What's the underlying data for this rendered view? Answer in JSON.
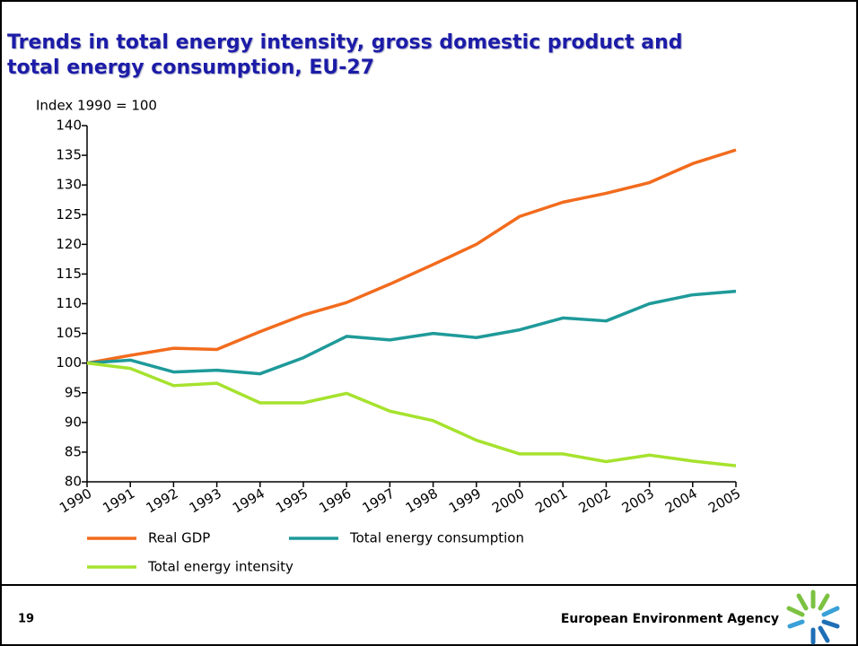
{
  "chart_data": {
    "type": "line",
    "title": "Trends in total energy intensity, gross domestic product and total energy consumption, EU-27",
    "y_label": "Index 1990 = 100",
    "categories": [
      "1990",
      "1991",
      "1992",
      "1993",
      "1994",
      "1995",
      "1996",
      "1997",
      "1998",
      "1999",
      "2000",
      "2001",
      "2002",
      "2003",
      "2004",
      "2005"
    ],
    "series": [
      {
        "name": "Real GDP",
        "color": "#f26b1d",
        "values": [
          100,
          101.3,
          102.5,
          102.3,
          105.3,
          108.1,
          110.2,
          113.3,
          116.6,
          120,
          124.7,
          127.1,
          128.6,
          130.4,
          133.6,
          135.9
        ]
      },
      {
        "name": "Total energy consumption",
        "color": "#1f9a9a",
        "values": [
          100,
          100.5,
          98.5,
          98.8,
          98.2,
          100.9,
          104.5,
          103.9,
          105,
          104.3,
          105.6,
          107.6,
          107.1,
          110,
          111.5,
          112.1
        ]
      },
      {
        "name": "Total energy intensity",
        "color": "#a6e22e",
        "values": [
          100,
          99.1,
          96.2,
          96.6,
          93.3,
          93.3,
          94.9,
          91.9,
          90.3,
          87,
          84.7,
          84.7,
          83.4,
          84.5,
          83.5,
          82.7
        ]
      }
    ],
    "ylim": [
      80,
      140
    ],
    "yticks": [
      80,
      85,
      90,
      95,
      100,
      105,
      110,
      115,
      120,
      125,
      130,
      135,
      140
    ],
    "grid": false
  },
  "footer": {
    "page": "19",
    "organization": "European Environment Agency"
  }
}
